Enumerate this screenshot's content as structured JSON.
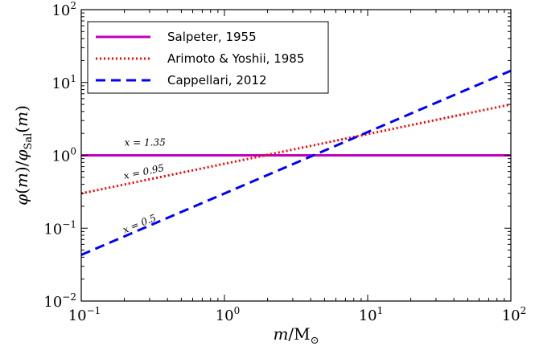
{
  "chart_data": {
    "type": "line",
    "title": "",
    "xlabel": "m/M_⊙",
    "ylabel": "φ(m)/φ_Sal(m)",
    "xscale": "log",
    "yscale": "log",
    "xlim": [
      0.1,
      100
    ],
    "ylim": [
      0.01,
      100
    ],
    "grid": false,
    "legend_position": "top-left",
    "x_tick_labels": [
      {
        "base": "10",
        "exp": "−1"
      },
      {
        "base": "10",
        "exp": "0"
      },
      {
        "base": "10",
        "exp": "1"
      },
      {
        "base": "10",
        "exp": "2"
      }
    ],
    "y_tick_labels": [
      {
        "base": "10",
        "exp": "−2"
      },
      {
        "base": "10",
        "exp": "−1"
      },
      {
        "base": "10",
        "exp": "0"
      },
      {
        "base": "10",
        "exp": "1"
      },
      {
        "base": "10",
        "exp": "2"
      }
    ],
    "series": [
      {
        "name": "Salpeter, 1955",
        "color": "#bf00bf",
        "style": "solid",
        "x": [
          0.1,
          100
        ],
        "y": [
          1.0,
          1.0
        ]
      },
      {
        "name": "Arimoto & Yoshii, 1985",
        "color": "#ff0000",
        "style": "dotted",
        "x": [
          0.1,
          100
        ],
        "y": [
          0.3,
          5.0
        ]
      },
      {
        "name": "Cappellari, 2012",
        "color": "#0000ff",
        "style": "dashed",
        "x": [
          0.1,
          100
        ],
        "y": [
          0.043,
          14.5
        ]
      }
    ],
    "annotations": [
      {
        "text": "x = 1.35",
        "x": 0.2,
        "y": 1.35,
        "rotation_deg": 0
      },
      {
        "text": "x = 0.95",
        "x": 0.2,
        "y": 0.47,
        "rotation_deg": -12
      },
      {
        "text": "x = 0.5",
        "x": 0.2,
        "y": 0.085,
        "rotation_deg": -22
      }
    ]
  }
}
